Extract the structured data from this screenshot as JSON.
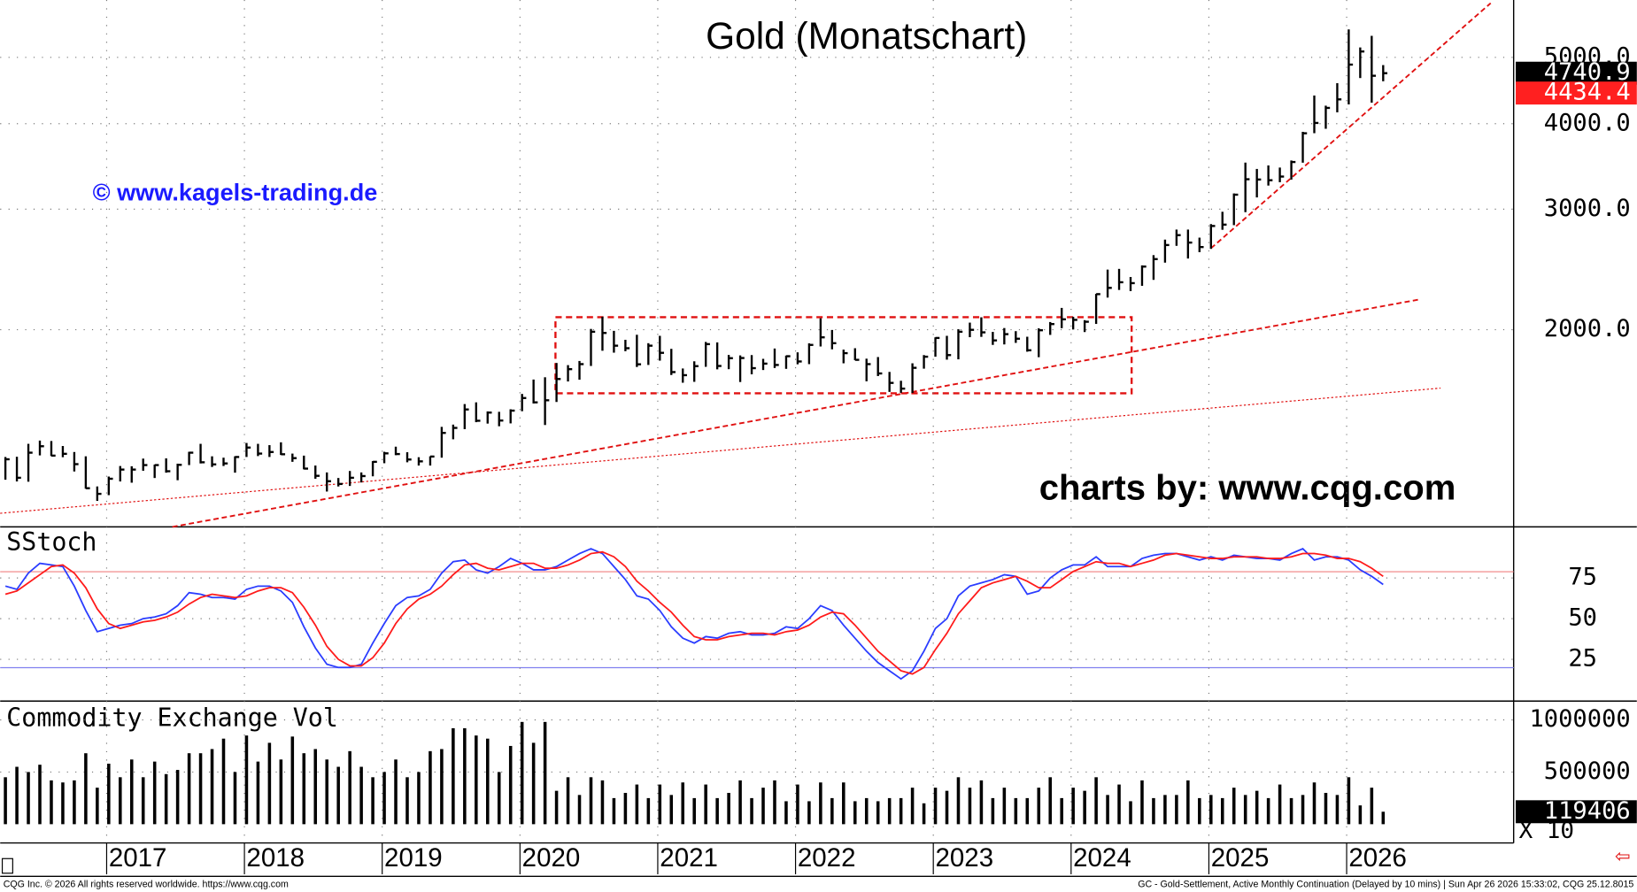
{
  "chart_data": [
    {
      "type": "hlc",
      "title": "Gold (Monatschart)",
      "annotations": [
        "© www.kagels-trading.de",
        "charts by: www.cqg.com"
      ],
      "log_scale": true,
      "grid": true,
      "color": "#000000",
      "ylim": [
        1030,
        6065
      ],
      "yticks": [
        {
          "value": 2000,
          "label": "2000.0"
        },
        {
          "value": 3000,
          "label": "3000.0"
        },
        {
          "value": 4000,
          "label": "4000.0"
        },
        {
          "value": 5000,
          "label": "5000.0"
        }
      ],
      "high": [
        1303,
        1304,
        1362,
        1377,
        1375,
        1352,
        1325,
        1306,
        1180,
        1220,
        1264,
        1263,
        1296,
        1270,
        1297,
        1274,
        1326,
        1362,
        1306,
        1300,
        1306,
        1366,
        1362,
        1356,
        1369,
        1318,
        1309,
        1266,
        1237,
        1214,
        1243,
        1237,
        1285,
        1326,
        1349,
        1324,
        1302,
        1306,
        1442,
        1453,
        1557,
        1566,
        1519,
        1517,
        1530,
        1611,
        1691,
        1704,
        1788,
        1775,
        1800,
        2005,
        2089,
        1992,
        1933,
        1966,
        1911,
        1959,
        1875,
        1755,
        1798,
        1919,
        1916,
        1837,
        1834,
        1836,
        1813,
        1877,
        1833,
        1853,
        1910,
        2078,
        1998,
        1870,
        1879,
        1814,
        1824,
        1735,
        1684,
        1786,
        1836,
        1949,
        1959,
        2003,
        2048,
        2085,
        1985,
        2011,
        1990,
        1953,
        2009,
        2052,
        2152,
        2088,
        2065,
        2256,
        2448,
        2454,
        2388,
        2483,
        2570,
        2708,
        2801,
        2801,
        2726,
        2853,
        2974,
        3163,
        3509,
        3435,
        3476,
        3451,
        3534,
        3892,
        4398,
        4250,
        4584,
        5494,
        5170,
        5375,
        4872
      ],
      "low": [
        1207,
        1200,
        1199,
        1310,
        1307,
        1302,
        1241,
        1171,
        1124,
        1146,
        1200,
        1195,
        1244,
        1214,
        1236,
        1205,
        1268,
        1275,
        1260,
        1264,
        1236,
        1303,
        1307,
        1303,
        1312,
        1282,
        1250,
        1211,
        1160,
        1180,
        1182,
        1196,
        1221,
        1276,
        1311,
        1280,
        1266,
        1266,
        1300,
        1383,
        1431,
        1465,
        1458,
        1445,
        1459,
        1520,
        1560,
        1451,
        1568,
        1680,
        1690,
        1770,
        1863,
        1851,
        1860,
        1764,
        1776,
        1802,
        1717,
        1673,
        1678,
        1765,
        1750,
        1751,
        1677,
        1721,
        1746,
        1758,
        1753,
        1780,
        1781,
        1890,
        1872,
        1786,
        1805,
        1681,
        1711,
        1622,
        1617,
        1616,
        1754,
        1826,
        1808,
        1810,
        1950,
        1952,
        1900,
        1903,
        1913,
        1857,
        1823,
        1965,
        2010,
        2001,
        1984,
        2039,
        2228,
        2286,
        2277,
        2318,
        2365,
        2506,
        2652,
        2541,
        2596,
        2625,
        2799,
        2843,
        2970,
        3121,
        3248,
        3285,
        3314,
        3508,
        3874,
        3932,
        4156,
        4268,
        4664,
        4293,
        4614
      ],
      "close": [
        1293,
        1215,
        1322,
        1351,
        1309,
        1317,
        1272,
        1173,
        1151,
        1211,
        1249,
        1249,
        1268,
        1268,
        1242,
        1269,
        1322,
        1280,
        1271,
        1275,
        1303,
        1345,
        1318,
        1325,
        1315,
        1298,
        1253,
        1223,
        1201,
        1190,
        1215,
        1222,
        1282,
        1319,
        1316,
        1292,
        1284,
        1305,
        1413,
        1437,
        1529,
        1472,
        1513,
        1473,
        1523,
        1589,
        1566,
        1577,
        1694,
        1751,
        1781,
        1986,
        1978,
        1895,
        1879,
        1780,
        1895,
        1850,
        1734,
        1716,
        1769,
        1905,
        1770,
        1817,
        1818,
        1757,
        1784,
        1776,
        1829,
        1797,
        1900,
        1949,
        1911,
        1848,
        1807,
        1781,
        1726,
        1672,
        1640,
        1759,
        1826,
        1945,
        1836,
        1986,
        1999,
        1982,
        1929,
        1970,
        1940,
        1866,
        1996,
        2038,
        2071,
        2067,
        2054,
        2254,
        2302,
        2346,
        2339,
        2473,
        2536,
        2659,
        2749,
        2681,
        2641,
        2835,
        2848,
        3150,
        3318,
        3315,
        3307,
        3348,
        3516,
        3873,
        4010,
        4218,
        4341,
        4880,
        5100,
        4700,
        4740.9
      ],
      "last_flags": [
        {
          "value": 4740.9,
          "color": "#000000"
        },
        {
          "value": 4434.4,
          "color": "#ff2020"
        }
      ]
    },
    {
      "type": "line",
      "title": "SStoch",
      "grid": true,
      "ylim": [
        0,
        100
      ],
      "yticks": [
        25,
        50,
        75
      ],
      "series": [
        {
          "color": "#2a3cff",
          "values": [
            70,
            68,
            78,
            84,
            83,
            82,
            70,
            55,
            42,
            44,
            46,
            47,
            50,
            51,
            53,
            58,
            66,
            65,
            63,
            63,
            62,
            68,
            70,
            70,
            67,
            60,
            45,
            32,
            22,
            20,
            20,
            22,
            35,
            47,
            58,
            63,
            64,
            68,
            78,
            85,
            86,
            80,
            78,
            82,
            87,
            84,
            80,
            80,
            82,
            86,
            90,
            93,
            90,
            82,
            74,
            64,
            62,
            55,
            45,
            38,
            35,
            39,
            38,
            41,
            42,
            40,
            40,
            41,
            45,
            44,
            50,
            58,
            55,
            46,
            38,
            30,
            23,
            18,
            13,
            18,
            30,
            44,
            50,
            64,
            70,
            72,
            74,
            77,
            76,
            65,
            67,
            75,
            80,
            83,
            83,
            88,
            82,
            82,
            82,
            87,
            89,
            90,
            90,
            88,
            86,
            88,
            86,
            89,
            88,
            87,
            87,
            86,
            90,
            93,
            86,
            88,
            88,
            86,
            80,
            76,
            71
          ]
        },
        {
          "color": "#ff1a1a",
          "values": [
            65,
            67,
            72,
            77,
            82,
            83,
            78,
            69,
            56,
            47,
            44,
            46,
            48,
            49,
            51,
            54,
            59,
            63,
            65,
            64,
            63,
            64,
            67,
            69,
            69,
            66,
            57,
            46,
            33,
            25,
            21,
            21,
            26,
            35,
            47,
            56,
            62,
            65,
            70,
            77,
            83,
            84,
            81,
            80,
            82,
            84,
            84,
            81,
            81,
            83,
            86,
            90,
            91,
            88,
            82,
            73,
            67,
            60,
            54,
            46,
            39,
            37,
            37,
            39,
            40,
            41,
            41,
            40,
            42,
            43,
            46,
            51,
            54,
            53,
            46,
            38,
            30,
            24,
            18,
            16,
            20,
            31,
            41,
            53,
            61,
            69,
            72,
            74,
            76,
            73,
            69,
            69,
            74,
            79,
            82,
            85,
            84,
            84,
            82,
            84,
            86,
            89,
            90,
            89,
            88,
            87,
            87,
            88,
            88,
            88,
            87,
            87,
            88,
            90,
            90,
            89,
            87,
            87,
            85,
            81,
            76
          ]
        }
      ]
    },
    {
      "type": "bar",
      "title": "Commodity Exchange Vol",
      "grid": true,
      "color": "#000000",
      "scale_note": "X 10",
      "ylim": [
        0,
        1180000
      ],
      "yticks": [
        500000,
        1000000
      ],
      "categories": [
        null,
        null,
        null,
        null,
        null,
        null,
        null,
        null,
        null,
        "2017",
        null,
        null,
        null,
        null,
        null,
        null,
        null,
        null,
        null,
        null,
        null,
        "2018",
        null,
        null,
        null,
        null,
        null,
        null,
        null,
        null,
        null,
        null,
        null,
        "2019",
        null,
        null,
        null,
        null,
        null,
        null,
        null,
        null,
        null,
        null,
        null,
        "2020",
        null,
        null,
        null,
        null,
        null,
        null,
        null,
        null,
        null,
        null,
        null,
        "2021",
        null,
        null,
        null,
        null,
        null,
        null,
        null,
        null,
        null,
        null,
        null,
        "2022",
        null,
        null,
        null,
        null,
        null,
        null,
        null,
        null,
        null,
        null,
        null,
        "2023",
        null,
        null,
        null,
        null,
        null,
        null,
        null,
        null,
        null,
        null,
        null,
        "2024",
        null,
        null,
        null,
        null,
        null,
        null,
        null,
        null,
        null,
        null,
        null,
        "2025",
        null,
        null,
        null,
        null,
        null,
        null,
        null,
        null,
        null,
        null,
        null,
        "2026",
        null,
        null,
        null
      ],
      "values": [
        450000,
        550000,
        500000,
        570000,
        420000,
        400000,
        420000,
        680000,
        350000,
        580000,
        450000,
        620000,
        450000,
        600000,
        480000,
        520000,
        680000,
        680000,
        720000,
        820000,
        500000,
        850000,
        600000,
        780000,
        620000,
        840000,
        680000,
        720000,
        620000,
        550000,
        700000,
        550000,
        450000,
        500000,
        620000,
        450000,
        500000,
        700000,
        720000,
        920000,
        920000,
        850000,
        820000,
        500000,
        750000,
        980000,
        780000,
        980000,
        320000,
        450000,
        280000,
        450000,
        420000,
        250000,
        300000,
        380000,
        250000,
        380000,
        280000,
        400000,
        250000,
        380000,
        250000,
        300000,
        420000,
        250000,
        350000,
        420000,
        220000,
        380000,
        220000,
        400000,
        250000,
        400000,
        220000,
        250000,
        220000,
        250000,
        250000,
        350000,
        200000,
        350000,
        320000,
        450000,
        350000,
        420000,
        250000,
        350000,
        250000,
        250000,
        350000,
        450000,
        250000,
        350000,
        320000,
        450000,
        280000,
        380000,
        220000,
        420000,
        250000,
        280000,
        280000,
        420000,
        250000,
        280000,
        250000,
        350000,
        280000,
        320000,
        250000,
        380000,
        250000,
        280000,
        400000,
        300000,
        280000,
        450000,
        180000,
        350000,
        119406
      ]
    }
  ],
  "footer": {
    "left": "CQG Inc. © 2026 All rights reserved worldwide. https://www.cqg.com",
    "right": "GC - Gold-Settlement, Active Monthly Continuation (Delayed by 10 mins) | Sun Apr 26 2026 15:33:02, CQG 25.12.8015"
  }
}
